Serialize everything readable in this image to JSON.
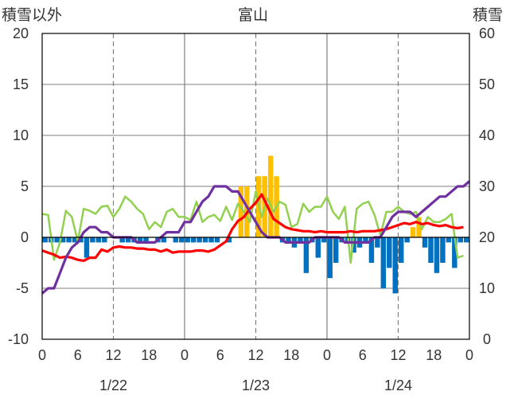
{
  "chart_data": {
    "type": "bar+line",
    "title": "富山",
    "left_axis_label": "積雪以外",
    "right_axis_label": "積雪",
    "left_ylim": [
      -10,
      20
    ],
    "left_yticks": [
      "20",
      "15",
      "10",
      "5",
      "0",
      "-5",
      "-10"
    ],
    "right_ylim": [
      0,
      60
    ],
    "right_yticks": [
      "60",
      "50",
      "40",
      "30",
      "20",
      "10",
      "0"
    ],
    "x_hour_ticks": [
      "0",
      "6",
      "12",
      "18",
      "0",
      "6",
      "12",
      "18",
      "0",
      "6",
      "12",
      "18",
      "0"
    ],
    "x_date_labels": [
      "1/22",
      "1/23",
      "1/24"
    ],
    "grid": true,
    "colors": {
      "precip_positive": "#ffc000",
      "precip_negative": "#0070c0",
      "temperature": "#ff0000",
      "humidity_like": "#92d050",
      "snow_depth": "#7030a0",
      "grid": "#7f7f7f",
      "axis": "#000000"
    },
    "bars": [
      {
        "hour": 0,
        "value": -0.5
      },
      {
        "hour": 1,
        "value": -0.5
      },
      {
        "hour": 2,
        "value": -0.5
      },
      {
        "hour": 3,
        "value": -0.5
      },
      {
        "hour": 4,
        "value": -0.5
      },
      {
        "hour": 5,
        "value": -0.5
      },
      {
        "hour": 6,
        "value": -0.5
      },
      {
        "hour": 7,
        "value": -2.0
      },
      {
        "hour": 8,
        "value": -0.5
      },
      {
        "hour": 9,
        "value": -0.5
      },
      {
        "hour": 10,
        "value": -0.5
      },
      {
        "hour": 13,
        "value": -0.5
      },
      {
        "hour": 14,
        "value": -0.5
      },
      {
        "hour": 15,
        "value": -0.5
      },
      {
        "hour": 16,
        "value": -0.5
      },
      {
        "hour": 17,
        "value": -0.5
      },
      {
        "hour": 19,
        "value": -0.5
      },
      {
        "hour": 20,
        "value": -0.5
      },
      {
        "hour": 22,
        "value": -0.5
      },
      {
        "hour": 23,
        "value": -0.5
      },
      {
        "hour": 24,
        "value": -0.5
      },
      {
        "hour": 25,
        "value": -0.5
      },
      {
        "hour": 26,
        "value": -0.5
      },
      {
        "hour": 27,
        "value": -0.5
      },
      {
        "hour": 28,
        "value": -0.5
      },
      {
        "hour": 29,
        "value": -0.5
      },
      {
        "hour": 31,
        "value": -0.5
      },
      {
        "hour": 33,
        "value": 5.0
      },
      {
        "hour": 34,
        "value": 5.0
      },
      {
        "hour": 36,
        "value": 6.0
      },
      {
        "hour": 37,
        "value": 6.0
      },
      {
        "hour": 38,
        "value": 8.0
      },
      {
        "hour": 39,
        "value": 6.0
      },
      {
        "hour": 40,
        "value": -0.5
      },
      {
        "hour": 41,
        "value": -0.5
      },
      {
        "hour": 42,
        "value": -1.0
      },
      {
        "hour": 43,
        "value": -0.5
      },
      {
        "hour": 44,
        "value": -3.5
      },
      {
        "hour": 45,
        "value": -0.5
      },
      {
        "hour": 46,
        "value": -2.0
      },
      {
        "hour": 47,
        "value": -0.5
      },
      {
        "hour": 48,
        "value": -4.0
      },
      {
        "hour": 49,
        "value": -2.5
      },
      {
        "hour": 50,
        "value": -0.5
      },
      {
        "hour": 51,
        "value": -0.5
      },
      {
        "hour": 52,
        "value": -1.5
      },
      {
        "hour": 53,
        "value": -1.0
      },
      {
        "hour": 54,
        "value": -0.5
      },
      {
        "hour": 55,
        "value": -2.5
      },
      {
        "hour": 56,
        "value": -1.0
      },
      {
        "hour": 57,
        "value": -5.0
      },
      {
        "hour": 58,
        "value": -3.0
      },
      {
        "hour": 59,
        "value": -5.5
      },
      {
        "hour": 60,
        "value": -2.5
      },
      {
        "hour": 61,
        "value": -0.5
      },
      {
        "hour": 62,
        "value": 1.0
      },
      {
        "hour": 63,
        "value": 2.0
      },
      {
        "hour": 64,
        "value": -1.0
      },
      {
        "hour": 65,
        "value": -2.5
      },
      {
        "hour": 66,
        "value": -3.5
      },
      {
        "hour": 67,
        "value": -2.5
      },
      {
        "hour": 68,
        "value": -0.5
      },
      {
        "hour": 69,
        "value": -3.0
      },
      {
        "hour": 70,
        "value": -0.5
      },
      {
        "hour": 71,
        "value": -0.5
      }
    ],
    "series": [
      {
        "color_key": "temperature",
        "axis": "left",
        "x": [
          0,
          1,
          2,
          3,
          4,
          5,
          6,
          7,
          8,
          9,
          10,
          11,
          12,
          13,
          14,
          15,
          16,
          17,
          18,
          19,
          20,
          21,
          22,
          23,
          24,
          25,
          26,
          27,
          28,
          29,
          30,
          31,
          32,
          33,
          34,
          35,
          36,
          37,
          38,
          39,
          40,
          41,
          42,
          43,
          44,
          45,
          46,
          47,
          48,
          49,
          50,
          51,
          52,
          53,
          54,
          55,
          56,
          57,
          58,
          59,
          60,
          61,
          62,
          63,
          64,
          65,
          66,
          67,
          68,
          69,
          70,
          71
        ],
        "values": [
          -1.3,
          -1.5,
          -1.7,
          -2.0,
          -1.9,
          -2.0,
          -2.2,
          -2.3,
          -2.0,
          -2.0,
          -1.2,
          -1.4,
          -1.0,
          -0.9,
          -1.0,
          -1.0,
          -1.1,
          -1.1,
          -1.2,
          -1.2,
          -1.4,
          -1.2,
          -1.5,
          -1.4,
          -1.4,
          -1.4,
          -1.3,
          -1.3,
          -1.4,
          -1.2,
          -0.8,
          -0.4,
          0.8,
          1.6,
          2.0,
          2.8,
          3.4,
          4.2,
          3.0,
          1.8,
          1.4,
          1.0,
          0.8,
          0.7,
          0.6,
          0.6,
          0.5,
          0.6,
          0.5,
          0.5,
          0.5,
          0.5,
          0.6,
          0.5,
          0.6,
          0.6,
          0.6,
          0.7,
          0.8,
          1.0,
          1.2,
          1.4,
          1.3,
          1.5,
          1.3,
          1.4,
          1.2,
          1.1,
          1.2,
          1.0,
          0.9,
          1.0
        ]
      },
      {
        "color_key": "humidity_like",
        "axis": "left",
        "x": [
          0,
          1,
          2,
          3,
          4,
          5,
          6,
          7,
          8,
          9,
          10,
          11,
          12,
          13,
          14,
          15,
          16,
          17,
          18,
          19,
          20,
          21,
          22,
          23,
          24,
          25,
          26,
          27,
          28,
          29,
          30,
          31,
          32,
          33,
          34,
          35,
          36,
          37,
          38,
          39,
          40,
          41,
          42,
          43,
          44,
          45,
          46,
          47,
          48,
          49,
          50,
          51,
          52,
          53,
          54,
          55,
          56,
          57,
          58,
          59,
          60,
          61,
          62,
          63,
          64,
          65,
          66,
          67,
          68,
          69,
          70,
          71
        ],
        "values": [
          2.3,
          2.2,
          -2.2,
          -0.5,
          2.6,
          2.0,
          -0.4,
          2.8,
          2.6,
          2.3,
          3.0,
          3.1,
          2.0,
          2.8,
          4.0,
          3.5,
          2.8,
          2.3,
          0.8,
          1.5,
          1.0,
          2.5,
          2.8,
          2.0,
          2.0,
          1.7,
          3.5,
          1.5,
          2.0,
          2.2,
          1.6,
          3.0,
          1.7,
          3.3,
          2.5,
          1.5,
          4.5,
          2.0,
          3.8,
          2.5,
          3.5,
          3.2,
          1.0,
          1.3,
          3.3,
          2.5,
          3.0,
          3.0,
          4.0,
          2.5,
          1.8,
          3.0,
          -2.5,
          2.8,
          3.3,
          3.5,
          2.2,
          0.2,
          2.5,
          2.5,
          3.0,
          2.5,
          2.3,
          2.5,
          0.8,
          2.0,
          1.5,
          1.5,
          1.8,
          2.3,
          -2.0,
          -1.8
        ]
      },
      {
        "color_key": "snow_depth",
        "axis": "right",
        "x": [
          0,
          1,
          2,
          3,
          4,
          5,
          6,
          7,
          8,
          9,
          10,
          11,
          12,
          13,
          14,
          15,
          16,
          17,
          18,
          19,
          20,
          21,
          22,
          23,
          24,
          25,
          26,
          27,
          28,
          29,
          30,
          31,
          32,
          33,
          34,
          35,
          36,
          37,
          38,
          39,
          40,
          41,
          42,
          43,
          44,
          45,
          46,
          47,
          48,
          49,
          50,
          51,
          52,
          53,
          54,
          55,
          56,
          57,
          58,
          59,
          60,
          61,
          62,
          63,
          64,
          65,
          66,
          67,
          68,
          69,
          70,
          71,
          72
        ],
        "values": [
          9,
          10,
          10,
          13,
          16,
          18,
          19,
          21,
          22,
          22,
          21,
          21,
          20,
          20,
          20,
          20,
          19,
          19,
          19,
          19,
          20,
          21,
          21,
          21,
          23,
          23,
          25,
          27,
          28,
          30,
          30,
          30,
          29,
          29,
          27,
          25,
          23,
          21,
          20,
          20,
          20,
          19,
          19,
          19,
          19,
          19,
          20,
          20,
          20,
          20,
          20,
          19,
          19,
          19,
          19,
          19,
          20,
          20,
          22,
          24,
          25,
          25,
          25,
          24,
          25,
          26,
          27,
          28,
          28,
          29,
          30,
          30,
          31
        ]
      }
    ]
  }
}
